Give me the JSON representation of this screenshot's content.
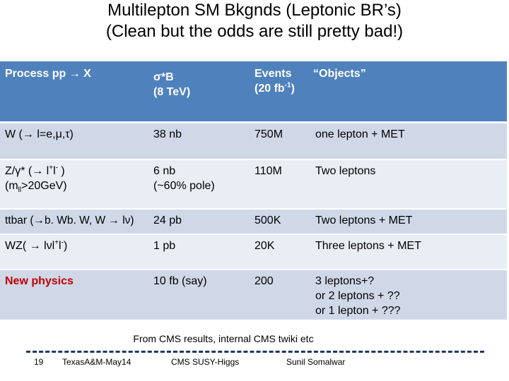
{
  "title_line1": "Multilepton SM Bkgnds (Leptonic BR’s)",
  "title_line2": "(Clean but the odds are still pretty bad!)",
  "table": {
    "header": {
      "process": "Process pp → X",
      "xsec_line1": "σ*B",
      "xsec_line2": "(8 TeV)",
      "events_line1": "Events",
      "events_line2_pre": "(20 fb",
      "events_line2_sup": "-1",
      "events_line2_post": ")",
      "objects": "“Objects”"
    },
    "rows": [
      {
        "process": "W (→ l=e,μ,τ)",
        "xsec": "38 nb",
        "events": "750M",
        "objects": " one lepton + MET"
      },
      {
        "process_line1_pre": "Z/γ* (→ l",
        "process_line1_sup1": "+",
        "process_line1_mid": "l",
        "process_line1_sup2": "-",
        "process_line1_post": " )",
        "process_line2_pre": "(m",
        "process_line2_sub": "ll",
        "process_line2_post": ">20GeV)",
        "xsec_line1": "6 nb",
        "xsec_line2": "(~60% pole)",
        "events": "110M",
        "objects": "Two leptons"
      },
      {
        "process": "ttbar (→b. Wb. W, W → lν)",
        "xsec": "24 pb",
        "events": "500K",
        "objects": "Two leptons + MET"
      },
      {
        "process_pre": "WZ( → lνl",
        "process_sup1": "+",
        "process_mid": "l",
        "process_sup2": "-",
        "process_post": ")",
        "xsec": "1 pb",
        "events": "20K",
        "objects": "Three leptons + MET"
      },
      {
        "process": "New physics",
        "xsec": "10 fb (say)",
        "events": "200",
        "objects_line1": "3 leptons+?",
        "objects_line2": "or 2 leptons + ??",
        "objects_line3": "or 1 lepton + ???"
      }
    ]
  },
  "source_note": "From CMS results, internal CMS twiki etc",
  "footer": {
    "slide_number": "19",
    "place_date": "TexasA&M-May14",
    "talk": "CMS SUSY-Higgs",
    "author": "Sunil Somalwar"
  },
  "colors": {
    "header_bg": "#4f81bd",
    "row_odd": "#d0d8e8",
    "row_even": "#e9edf4",
    "highlight": "#c00000",
    "footer_line": "#1f3864"
  }
}
